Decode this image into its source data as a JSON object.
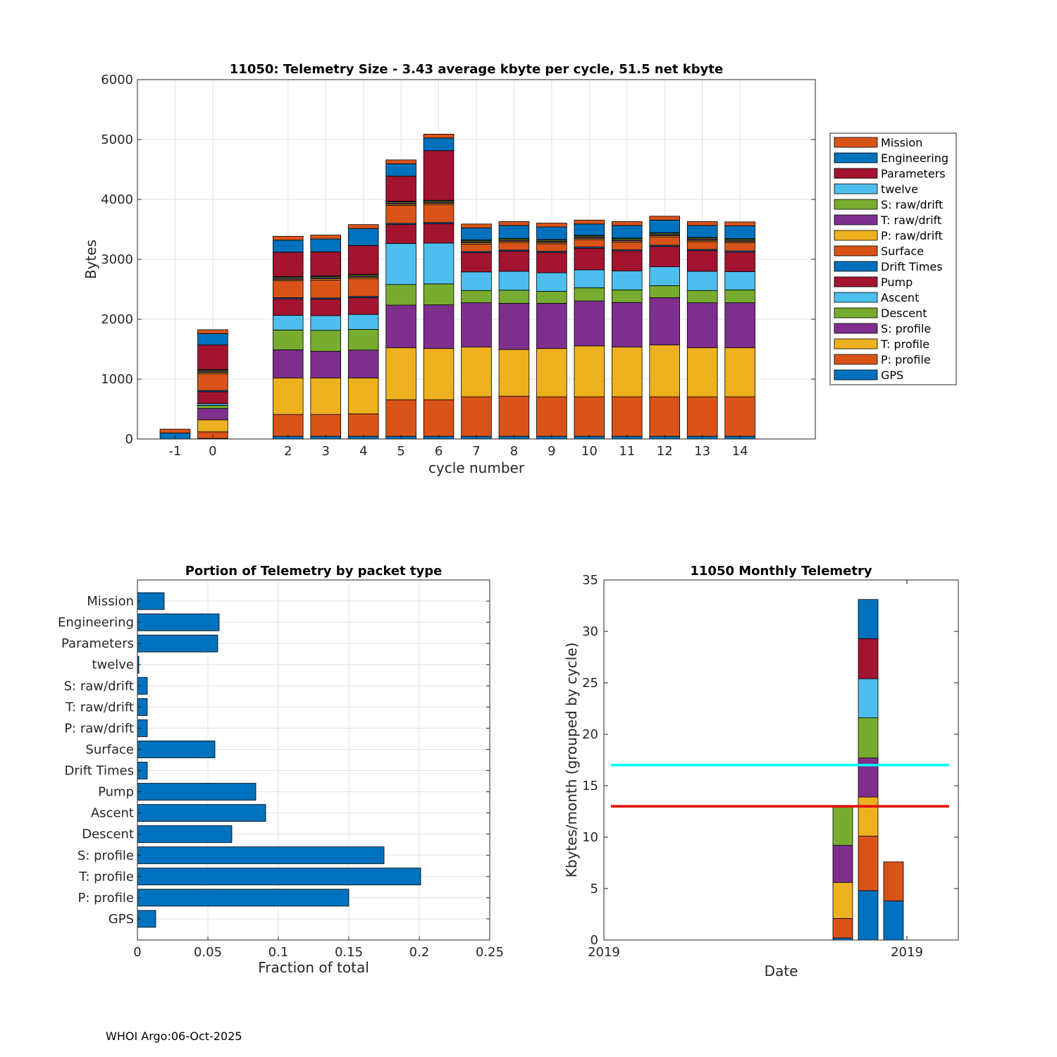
{
  "colors": {
    "GPS": "#0072BD",
    "P: profile": "#D95319",
    "T: profile": "#EDB120",
    "S: profile": "#7E2F8E",
    "Descent": "#77AC30",
    "Ascent": "#4DBEEE",
    "Pump": "#A2142F",
    "Drift Times": "#0072BD",
    "Surface": "#D95319",
    "P: raw/drift": "#EDB120",
    "T: raw/drift": "#7E2F8E",
    "S: raw/drift": "#77AC30",
    "twelve": "#4DBEEE",
    "Parameters": "#A2142F",
    "Engineering": "#0072BD",
    "Mission": "#D95319",
    "cyan_line": "#00FFFF",
    "red_line": "#E00000",
    "bar_blue": "#0072BD"
  },
  "chart_data": [
    {
      "type": "bar",
      "stacked": true,
      "title": "11050: Telemetry Size - 3.43 average kbyte per cycle,   51.5 net kbyte",
      "xlabel": "cycle number",
      "ylabel": "Bytes",
      "xlim": [
        -2,
        16
      ],
      "ylim": [
        0,
        6000
      ],
      "yticks": [
        0,
        1000,
        2000,
        3000,
        4000,
        5000,
        6000
      ],
      "categories": [
        "-1",
        "0",
        "2",
        "3",
        "4",
        "5",
        "6",
        "7",
        "8",
        "9",
        "10",
        "11",
        "12",
        "13",
        "14"
      ],
      "x": [
        -1,
        0,
        2,
        3,
        4,
        5,
        6,
        7,
        8,
        9,
        10,
        11,
        12,
        13,
        14
      ],
      "legend_position": "outside-right",
      "legend": [
        "Mission",
        "Engineering",
        "Parameters",
        "twelve",
        "S: raw/drift",
        "T: raw/drift",
        "P: raw/drift",
        "Surface",
        "Drift Times",
        "Pump",
        "Ascent",
        "Descent",
        "S: profile",
        "T: profile",
        "P: profile",
        "GPS"
      ],
      "series": [
        {
          "name": "GPS",
          "values": [
            0,
            10,
            45,
            45,
            45,
            45,
            45,
            45,
            45,
            45,
            45,
            45,
            45,
            45,
            45
          ]
        },
        {
          "name": "P: profile",
          "values": [
            0,
            110,
            365,
            365,
            375,
            610,
            610,
            660,
            670,
            660,
            660,
            660,
            660,
            660,
            660
          ]
        },
        {
          "name": "T: profile",
          "values": [
            0,
            200,
            610,
            610,
            600,
            870,
            855,
            830,
            780,
            805,
            850,
            830,
            865,
            820,
            820
          ]
        },
        {
          "name": "S: profile",
          "values": [
            0,
            190,
            470,
            445,
            465,
            710,
            730,
            740,
            770,
            755,
            750,
            745,
            790,
            750,
            750
          ]
        },
        {
          "name": "Descent",
          "values": [
            0,
            50,
            330,
            350,
            345,
            345,
            350,
            205,
            220,
            200,
            220,
            210,
            200,
            205,
            215
          ]
        },
        {
          "name": "Ascent",
          "values": [
            0,
            30,
            245,
            245,
            250,
            685,
            680,
            310,
            315,
            310,
            300,
            315,
            315,
            320,
            305
          ]
        },
        {
          "name": "Pump",
          "values": [
            0,
            200,
            275,
            275,
            280,
            315,
            325,
            320,
            335,
            340,
            360,
            335,
            340,
            345,
            325
          ]
        },
        {
          "name": "Drift Times",
          "values": [
            0,
            20,
            20,
            20,
            20,
            20,
            20,
            20,
            20,
            20,
            20,
            20,
            20,
            20,
            20
          ]
        },
        {
          "name": "Surface",
          "values": [
            0,
            280,
            280,
            300,
            300,
            300,
            300,
            125,
            125,
            125,
            125,
            125,
            140,
            130,
            135
          ]
        },
        {
          "name": "P: raw/drift",
          "values": [
            0,
            20,
            20,
            20,
            20,
            20,
            20,
            20,
            20,
            20,
            20,
            20,
            20,
            20,
            20
          ]
        },
        {
          "name": "T: raw/drift",
          "values": [
            0,
            20,
            20,
            20,
            20,
            20,
            20,
            20,
            20,
            20,
            20,
            20,
            20,
            20,
            20
          ]
        },
        {
          "name": "S: raw/drift",
          "values": [
            0,
            20,
            20,
            20,
            20,
            20,
            20,
            20,
            20,
            20,
            20,
            20,
            20,
            20,
            20
          ]
        },
        {
          "name": "twelve",
          "values": [
            0,
            10,
            10,
            10,
            10,
            10,
            10,
            10,
            10,
            10,
            10,
            10,
            10,
            10,
            10
          ]
        },
        {
          "name": "Parameters",
          "values": [
            0,
            410,
            410,
            400,
            480,
            420,
            830,
            0,
            0,
            0,
            0,
            0,
            0,
            0,
            0
          ]
        },
        {
          "name": "Engineering",
          "values": [
            100,
            190,
            200,
            215,
            285,
            205,
            210,
            200,
            215,
            210,
            190,
            210,
            210,
            200,
            215
          ]
        },
        {
          "name": "Mission",
          "values": [
            65,
            65,
            65,
            65,
            65,
            65,
            65,
            65,
            65,
            65,
            65,
            65,
            65,
            65,
            65
          ]
        }
      ]
    },
    {
      "type": "bar",
      "orientation": "horizontal",
      "title": "Portion of Telemetry by packet type",
      "xlabel": "Fraction of total",
      "xlim": [
        0,
        0.25
      ],
      "xticks": [
        0,
        0.05,
        0.1,
        0.15,
        0.2,
        0.25
      ],
      "xtick_labels": [
        "0",
        "0.05",
        "0.1",
        "0.15",
        "0.2",
        "0.25"
      ],
      "categories": [
        "GPS",
        "P: profile",
        "T: profile",
        "S: profile",
        "Descent",
        "Ascent",
        "Pump",
        "Drift Times",
        "Surface",
        "P: raw/drift",
        "T: raw/drift",
        "S: raw/drift",
        "twelve",
        "Parameters",
        "Engineering",
        "Mission"
      ],
      "values": [
        0.013,
        0.15,
        0.201,
        0.175,
        0.067,
        0.091,
        0.084,
        0.007,
        0.055,
        0.007,
        0.007,
        0.007,
        0.001,
        0.057,
        0.058,
        0.019
      ]
    },
    {
      "type": "bar",
      "stacked": true,
      "title": "11050 Monthly Telemetry",
      "xlabel": "Date",
      "ylabel": "Kbytes/month (grouped by cycle)",
      "ylim": [
        0,
        35
      ],
      "yticks": [
        0,
        5,
        10,
        15,
        20,
        25,
        30,
        35
      ],
      "xtick_labels": [
        "2019",
        "2019"
      ],
      "bars": [
        {
          "segments": [
            0.2,
            1.9,
            3.5,
            3.6,
            3.8
          ]
        },
        {
          "segments": [
            4.8,
            5.3,
            3.8,
            3.8,
            3.9,
            3.8,
            3.9,
            3.8
          ]
        },
        {
          "segments": [
            3.8,
            3.8
          ]
        }
      ],
      "segment_colors": [
        "#0072BD",
        "#D95319",
        "#EDB120",
        "#7E2F8E",
        "#77AC30",
        "#4DBEEE",
        "#A2142F",
        "#0072BD"
      ],
      "reference_lines": [
        {
          "name": "cyan",
          "value": 17,
          "color": "#00FFFF"
        },
        {
          "name": "red",
          "value": 13,
          "color": "#E00000"
        }
      ]
    }
  ],
  "footer": "WHOI Argo:06-Oct-2025"
}
